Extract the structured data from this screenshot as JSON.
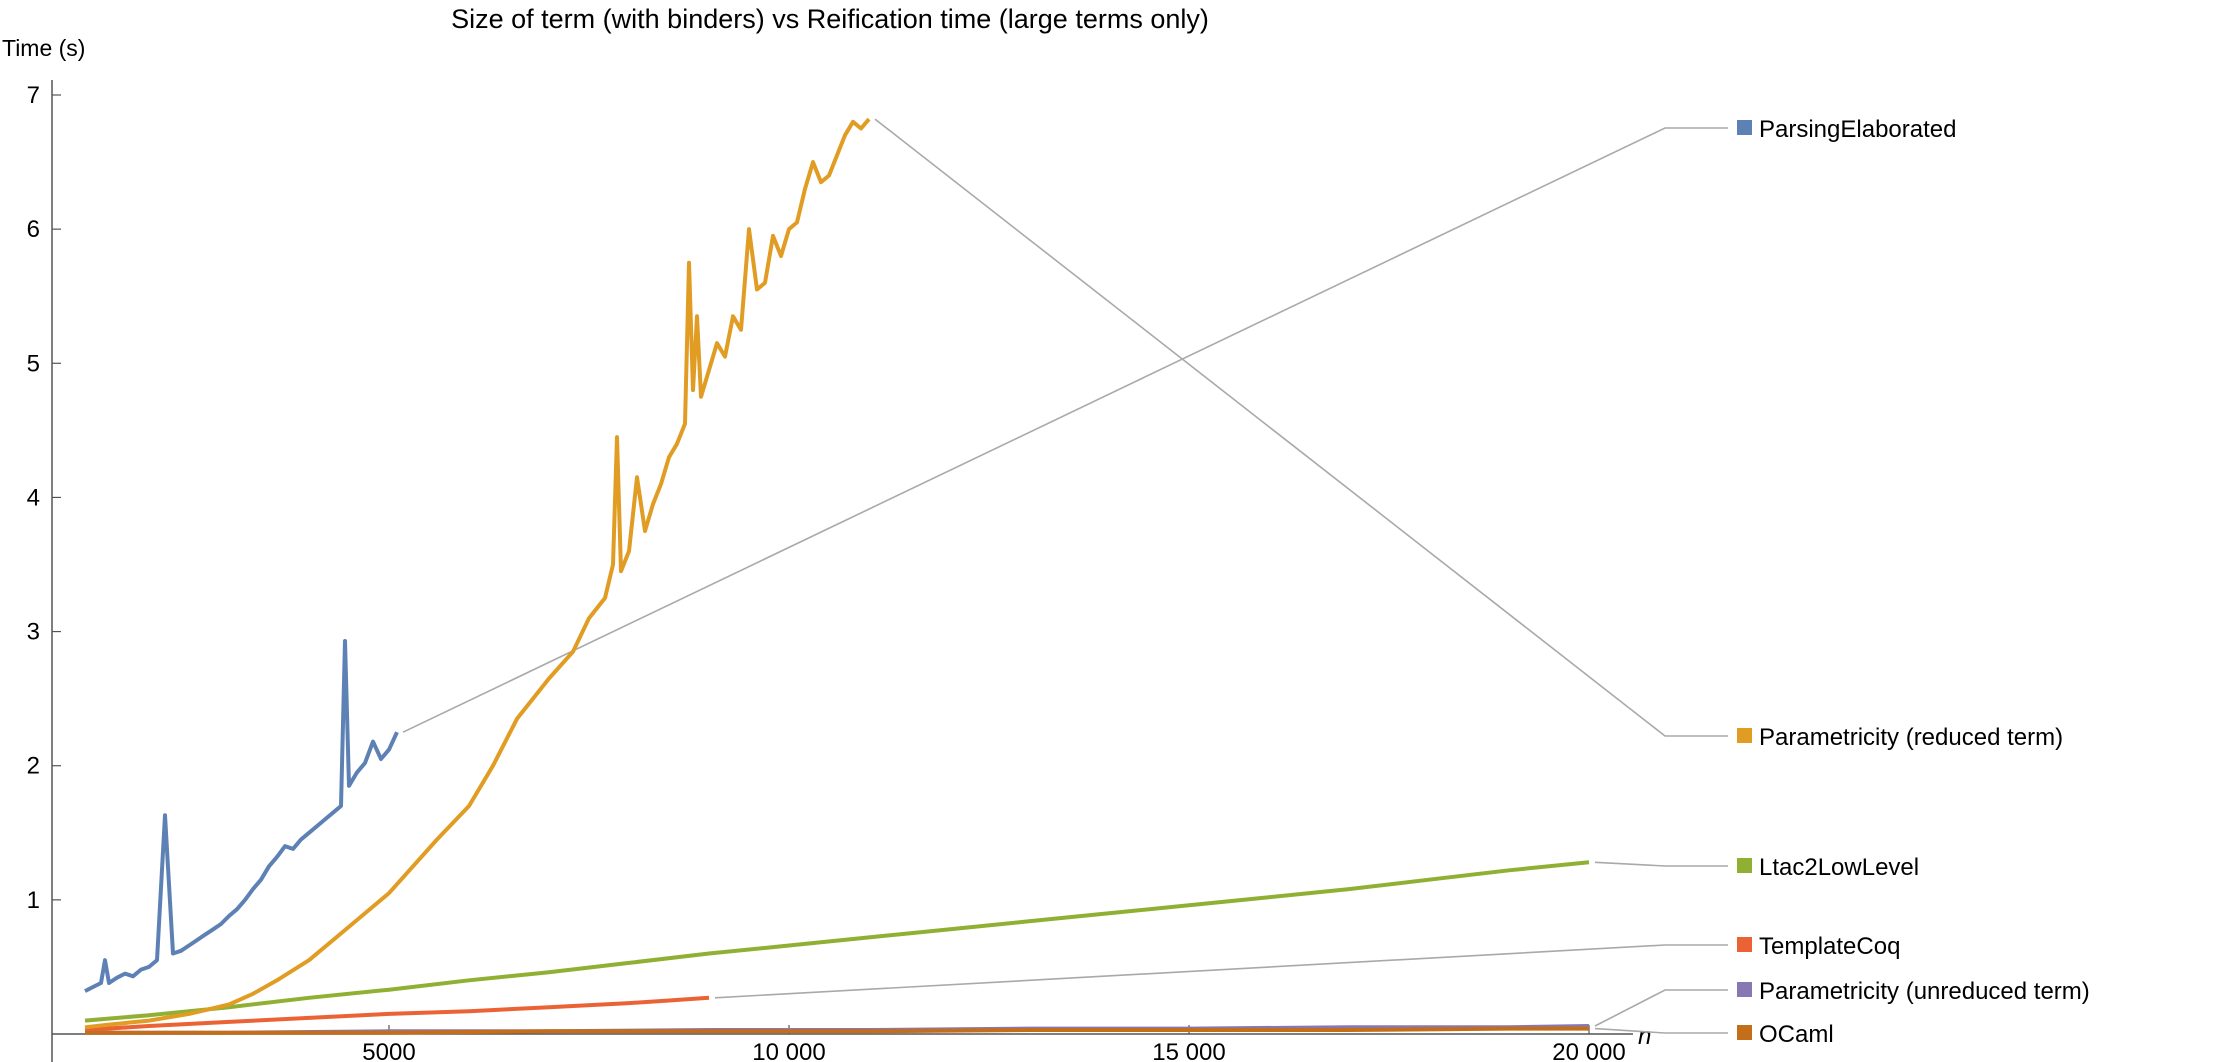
{
  "chart_data": {
    "type": "line",
    "title": "Size of term (with binders) vs Reification time (large terms only)",
    "xlabel": "n",
    "ylabel": "Time (s)",
    "xlim": [
      1000,
      21000
    ],
    "ylim": [
      0,
      7.2
    ],
    "xticks": [
      5000,
      10000,
      15000,
      20000
    ],
    "xtick_labels": [
      "5000",
      "10 000",
      "15 000",
      "20 000"
    ],
    "yticks": [
      1,
      2,
      3,
      4,
      5,
      6,
      7
    ],
    "ytick_labels": [
      "1",
      "2",
      "3",
      "4",
      "5",
      "6",
      "7"
    ],
    "grid": false,
    "legend_placement": "right, labels connected to series ends",
    "series": [
      {
        "name": "ParsingElaborated",
        "color": "#5e81b5",
        "x": [
          1200,
          1300,
          1400,
          1450,
          1500,
          1600,
          1700,
          1800,
          1900,
          2000,
          2100,
          2200,
          2300,
          2400,
          2500,
          2600,
          2700,
          2800,
          2900,
          3000,
          3100,
          3200,
          3300,
          3400,
          3500,
          3600,
          3700,
          3800,
          3900,
          4000,
          4100,
          4200,
          4300,
          4400,
          4450,
          4500,
          4600,
          4700,
          4800,
          4900,
          5000,
          5100
        ],
        "y": [
          0.32,
          0.35,
          0.38,
          0.55,
          0.38,
          0.42,
          0.45,
          0.43,
          0.48,
          0.5,
          0.55,
          1.63,
          0.6,
          0.62,
          0.66,
          0.7,
          0.74,
          0.78,
          0.82,
          0.88,
          0.93,
          1.0,
          1.08,
          1.15,
          1.25,
          1.32,
          1.4,
          1.38,
          1.45,
          1.5,
          1.55,
          1.6,
          1.65,
          1.7,
          2.93,
          1.85,
          1.95,
          2.02,
          2.18,
          2.05,
          2.12,
          2.25
        ]
      },
      {
        "name": "Parametricity (reduced term)",
        "color": "#e19c24",
        "x": [
          1200,
          1500,
          2000,
          2500,
          3000,
          3300,
          3600,
          4000,
          4300,
          4600,
          5000,
          5300,
          5600,
          6000,
          6300,
          6600,
          7000,
          7300,
          7500,
          7700,
          7800,
          7850,
          7900,
          8000,
          8100,
          8200,
          8300,
          8400,
          8500,
          8600,
          8700,
          8750,
          8800,
          8850,
          8900,
          9000,
          9100,
          9200,
          9300,
          9400,
          9500,
          9600,
          9700,
          9800,
          9900,
          10000,
          10100,
          10200,
          10300,
          10400,
          10500,
          10600,
          10700,
          10800,
          10900,
          11000
        ],
        "y": [
          0.05,
          0.07,
          0.1,
          0.15,
          0.22,
          0.3,
          0.4,
          0.55,
          0.7,
          0.85,
          1.05,
          1.25,
          1.45,
          1.7,
          2.0,
          2.35,
          2.65,
          2.85,
          3.1,
          3.25,
          3.5,
          4.45,
          3.45,
          3.6,
          4.15,
          3.75,
          3.95,
          4.1,
          4.3,
          4.4,
          4.55,
          5.75,
          4.8,
          5.35,
          4.75,
          4.95,
          5.15,
          5.05,
          5.35,
          5.25,
          6.0,
          5.55,
          5.6,
          5.95,
          5.8,
          6.0,
          6.05,
          6.3,
          6.5,
          6.35,
          6.4,
          6.55,
          6.7,
          6.8,
          6.75,
          6.82
        ]
      },
      {
        "name": "Ltac2LowLevel",
        "color": "#8fb032",
        "x": [
          1200,
          2000,
          3000,
          4000,
          5000,
          6000,
          7000,
          8000,
          9000,
          10000,
          11000,
          12000,
          13000,
          14000,
          15000,
          16000,
          17000,
          18000,
          19000,
          20000
        ],
        "y": [
          0.1,
          0.14,
          0.2,
          0.27,
          0.33,
          0.4,
          0.46,
          0.53,
          0.6,
          0.66,
          0.72,
          0.78,
          0.84,
          0.9,
          0.96,
          1.02,
          1.08,
          1.15,
          1.22,
          1.28
        ]
      },
      {
        "name": "TemplateCoq",
        "color": "#eb6235",
        "x": [
          1200,
          2000,
          3000,
          4000,
          5000,
          6000,
          7000,
          8000,
          8500,
          9000
        ],
        "y": [
          0.03,
          0.06,
          0.09,
          0.12,
          0.15,
          0.17,
          0.2,
          0.23,
          0.25,
          0.27
        ]
      },
      {
        "name": "Parametricity (unreduced term)",
        "color": "#8778b3",
        "x": [
          1200,
          3000,
          5000,
          7000,
          9000,
          11000,
          13000,
          15000,
          17000,
          19000,
          20000
        ],
        "y": [
          0.01,
          0.01,
          0.02,
          0.02,
          0.03,
          0.03,
          0.04,
          0.04,
          0.05,
          0.05,
          0.06
        ]
      },
      {
        "name": "OCaml",
        "color": "#c56e1a",
        "x": [
          1200,
          3000,
          5000,
          7000,
          9000,
          11000,
          13000,
          15000,
          17000,
          19000,
          20000
        ],
        "y": [
          0.01,
          0.01,
          0.01,
          0.02,
          0.02,
          0.02,
          0.03,
          0.03,
          0.03,
          0.04,
          0.04
        ]
      }
    ]
  }
}
